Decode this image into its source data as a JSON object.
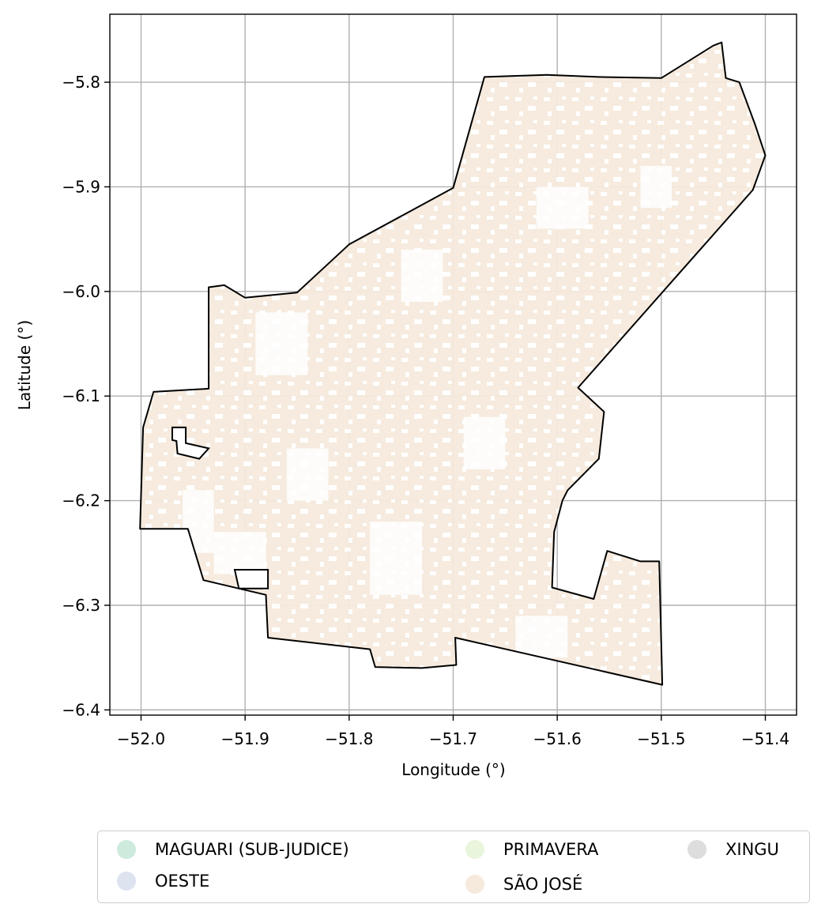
{
  "chart_data": {
    "type": "map",
    "xlabel": "Longitude (°)",
    "ylabel": "Latitude (°)",
    "xlim": [
      -52.03,
      -51.37
    ],
    "ylim": [
      -6.405,
      -5.735
    ],
    "x_ticks": [
      -52.0,
      -51.9,
      -51.8,
      -51.7,
      -51.6,
      -51.5,
      -51.4
    ],
    "x_tick_labels": [
      "−52.0",
      "−51.9",
      "−51.8",
      "−51.7",
      "−51.6",
      "−51.5",
      "−51.4"
    ],
    "y_ticks": [
      -5.8,
      -5.9,
      -6.0,
      -6.1,
      -6.2,
      -6.3,
      -6.4
    ],
    "y_tick_labels": [
      "−5.8",
      "−5.9",
      "−6.0",
      "−6.1",
      "−6.2",
      "−6.3",
      "−6.4"
    ],
    "grid": true,
    "legend_position": "bottom",
    "legend": [
      {
        "label": "MAGUARI (SUB-JUDICE)",
        "color": "#cdeadd"
      },
      {
        "label": "OESTE",
        "color": "#dde3ef"
      },
      {
        "label": "PRIMAVERA",
        "color": "#e9f6dd"
      },
      {
        "label": "SÃO JOSÉ",
        "color": "#f5eadc"
      },
      {
        "label": "XINGU",
        "color": "#dddddd"
      }
    ],
    "boundary_outline": [
      [
        -51.988,
        -6.096
      ],
      [
        -51.935,
        -6.093
      ],
      [
        -51.935,
        -5.996
      ],
      [
        -51.92,
        -5.994
      ],
      [
        -51.9,
        -6.006
      ],
      [
        -51.85,
        -6.001
      ],
      [
        -51.8,
        -5.955
      ],
      [
        -51.7,
        -5.901
      ],
      [
        -51.67,
        -5.795
      ],
      [
        -51.61,
        -5.793
      ],
      [
        -51.56,
        -5.795
      ],
      [
        -51.5,
        -5.796
      ],
      [
        -51.45,
        -5.765
      ],
      [
        -51.442,
        -5.762
      ],
      [
        -51.438,
        -5.796
      ],
      [
        -51.425,
        -5.8
      ],
      [
        -51.41,
        -5.84
      ],
      [
        -51.4,
        -5.87
      ],
      [
        -51.412,
        -5.903
      ],
      [
        -51.58,
        -6.092
      ],
      [
        -51.555,
        -6.115
      ],
      [
        -51.56,
        -6.16
      ],
      [
        -51.59,
        -6.19
      ],
      [
        -51.595,
        -6.2
      ],
      [
        -51.603,
        -6.23
      ],
      [
        -51.605,
        -6.283
      ],
      [
        -51.565,
        -6.294
      ],
      [
        -51.552,
        -6.248
      ],
      [
        -51.52,
        -6.258
      ],
      [
        -51.502,
        -6.258
      ],
      [
        -51.499,
        -6.376
      ],
      [
        -51.698,
        -6.331
      ],
      [
        -51.697,
        -6.357
      ],
      [
        -51.73,
        -6.36
      ],
      [
        -51.775,
        -6.359
      ],
      [
        -51.78,
        -6.342
      ],
      [
        -51.878,
        -6.331
      ],
      [
        -51.88,
        -6.29
      ],
      [
        -51.94,
        -6.276
      ],
      [
        -51.955,
        -6.227
      ],
      [
        -52.001,
        -6.227
      ],
      [
        -51.998,
        -6.13
      ],
      [
        -51.988,
        -6.096
      ]
    ],
    "inner_outlines": [
      [
        [
          -51.97,
          -6.13
        ],
        [
          -51.957,
          -6.13
        ],
        [
          -51.957,
          -6.145
        ],
        [
          -51.935,
          -6.15
        ],
        [
          -51.944,
          -6.16
        ],
        [
          -51.965,
          -6.155
        ],
        [
          -51.966,
          -6.143
        ],
        [
          -51.97,
          -6.142
        ],
        [
          -51.97,
          -6.13
        ]
      ],
      [
        [
          -51.91,
          -6.266
        ],
        [
          -51.878,
          -6.266
        ],
        [
          -51.878,
          -6.284
        ],
        [
          -51.906,
          -6.284
        ],
        [
          -51.91,
          -6.266
        ]
      ]
    ],
    "territory_category": "SÃO JOSÉ"
  }
}
